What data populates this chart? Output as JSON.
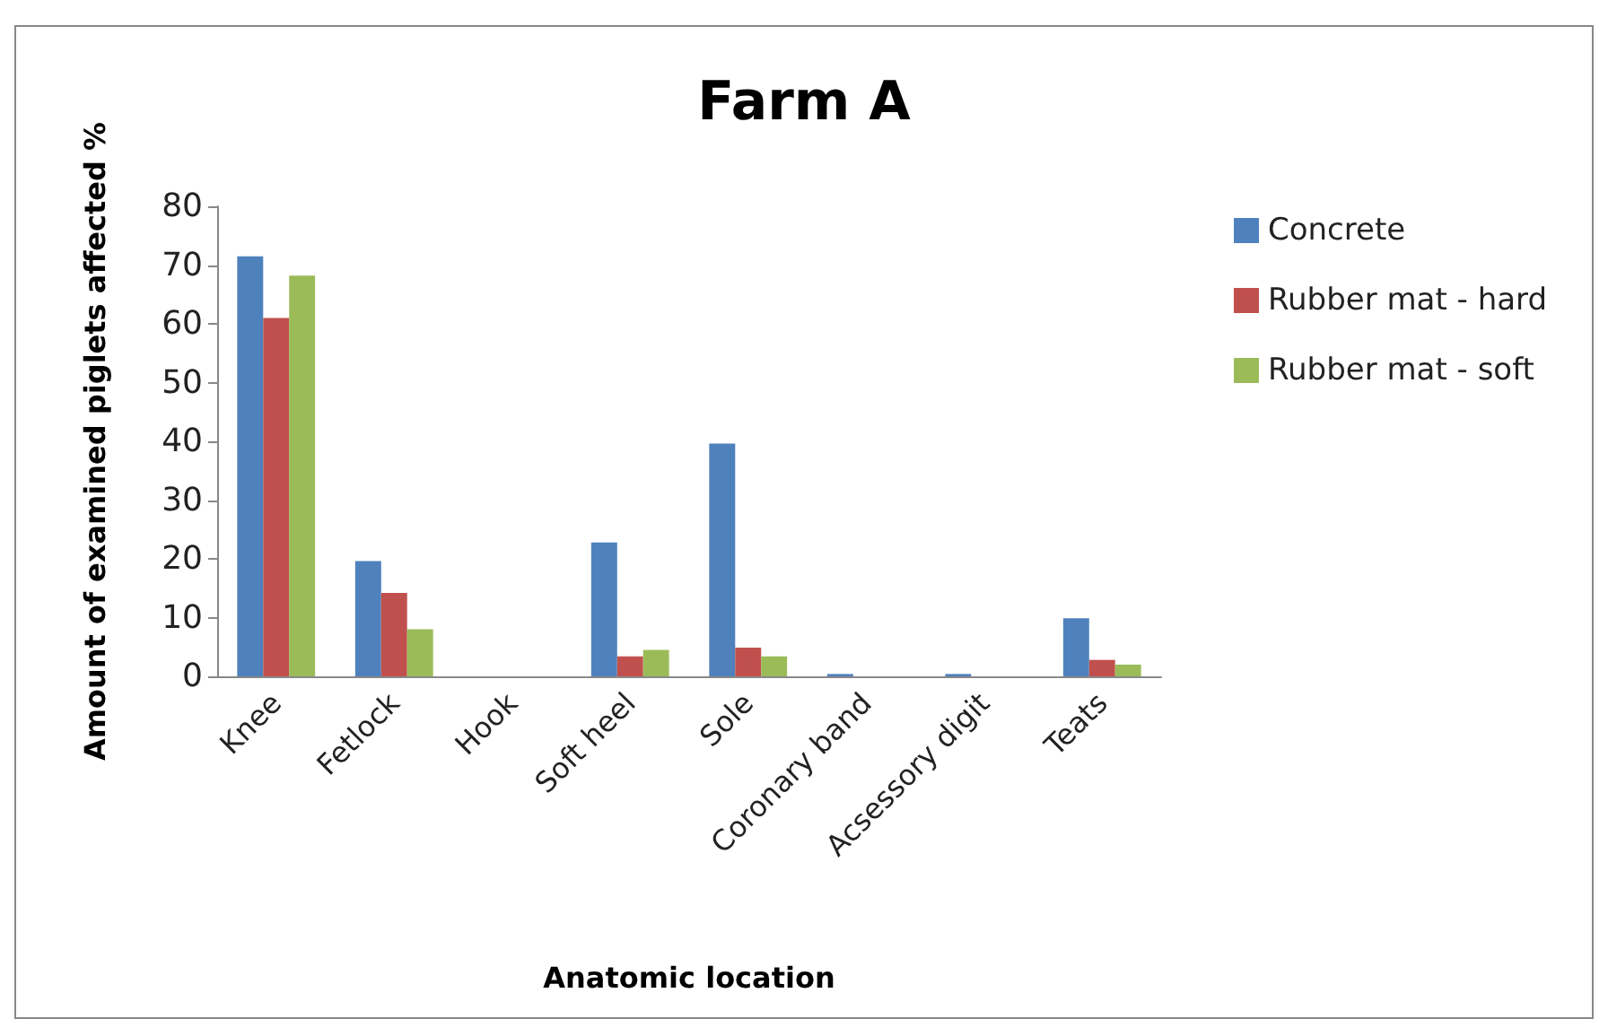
{
  "chart_data": {
    "type": "bar",
    "title": "Farm A",
    "xlabel": "Anatomic location",
    "ylabel": "Amount of examined piglets affected %",
    "categories": [
      "Knee",
      "Fetlock",
      "Hook",
      "Soft heel",
      "Sole",
      "Coronary band",
      "Acsessory digit",
      "Teats"
    ],
    "series": [
      {
        "name": "Concrete",
        "color": "#4f81bd",
        "values": [
          71.5,
          19.6,
          0,
          22.8,
          39.6,
          0.4,
          0.4,
          9.9
        ]
      },
      {
        "name": "Rubber mat - hard",
        "color": "#c0504d",
        "values": [
          61,
          14.2,
          0,
          3.4,
          4.9,
          0,
          0,
          2.8
        ]
      },
      {
        "name": "Rubber mat - soft",
        "color": "#9bbb59",
        "values": [
          68.2,
          8,
          0,
          4.5,
          3.4,
          0,
          0,
          2
        ]
      }
    ],
    "ylim": [
      0,
      80
    ],
    "yticks": [
      0,
      10,
      20,
      30,
      40,
      50,
      60,
      70,
      80
    ],
    "grid": false,
    "legend": "top right"
  }
}
